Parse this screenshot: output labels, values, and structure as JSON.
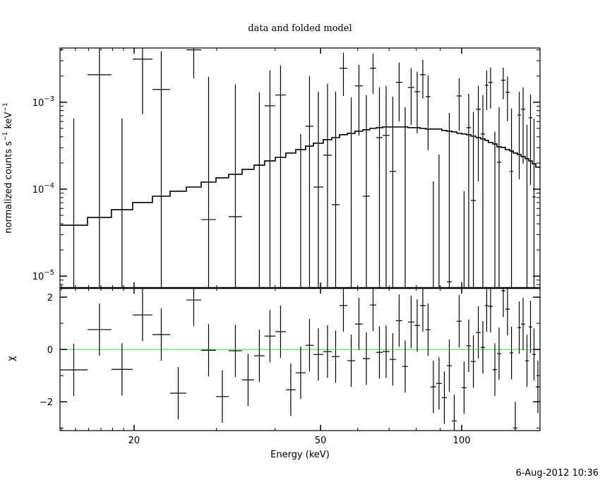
{
  "chart_data": [
    {
      "panel": "spectrum",
      "type": "line",
      "title": "data and folded model",
      "ylabel_parts": [
        "normalized counts s",
        "−1",
        " keV",
        "−1"
      ],
      "xlim": [
        13.9,
        146.9
      ],
      "ylim": [
        7.3e-06,
        0.0042
      ],
      "xscale": "log",
      "yscale": "log",
      "yticks": [
        {
          "value": 1e-05,
          "base": "10",
          "exp": "−5"
        },
        {
          "value": 0.0001,
          "base": "10",
          "exp": "−4"
        },
        {
          "value": 0.001,
          "base": "10",
          "exp": "−3"
        }
      ],
      "bin_edges_keV": [
        13.9,
        15.91,
        17.89,
        19.86,
        21.89,
        23.87,
        25.85,
        27.81,
        29.91,
        31.83,
        34.0,
        36.06,
        37.98,
        40.02,
        42.15,
        44.25,
        46.45,
        48.26,
        50.66,
        52.81,
        54.87,
        57.01,
        59.23,
        61.52,
        63.7,
        65.71,
        67.8,
        70.18,
        72.4,
        74.7,
        76.8,
        79.24,
        81.47,
        83.75,
        85.81,
        88.22,
        90.7,
        92.95,
        95.24,
        97.57,
        99.97,
        102.4,
        104.6,
        107.2,
        109.8,
        112.1,
        114.0,
        116.5,
        118.9,
        121.4,
        123.9,
        126.6,
        128.8,
        131.5,
        133.8,
        136.6,
        139.0,
        141.4,
        143.9,
        146.9
      ],
      "model": [
        3.85e-05,
        4.73e-05,
        5.81e-05,
        7.01e-05,
        8.29e-05,
        9.46e-05,
        0.0001057,
        0.0001205,
        0.0001349,
        0.0001482,
        0.000169,
        0.0001889,
        0.0002114,
        0.0002323,
        0.00026,
        0.0002851,
        0.000313,
        0.000338,
        0.000371,
        0.000392,
        0.000423,
        0.000439,
        0.000464,
        0.000482,
        0.0005,
        0.00051,
        0.000519,
        0.000519,
        0.000519,
        0.000519,
        0.00051,
        0.00051,
        0.0005,
        0.000491,
        0.000491,
        0.000491,
        0.000473,
        0.000464,
        0.000456,
        0.000439,
        0.000431,
        0.000423,
        0.000407,
        0.000392,
        0.000378,
        0.000364,
        0.000344,
        0.000331,
        0.000307,
        0.000302,
        0.000285,
        0.000275,
        0.00026,
        0.00025,
        0.000237,
        0.000224,
        0.000211,
        0.000196,
        0.000179
      ],
      "data": [
        [
          null,
          null,
          0.00065
        ],
        [
          0.00207,
          null,
          0.006
        ],
        [
          null,
          null,
          0.00065
        ],
        [
          0.00313,
          0.000727,
          0.006
        ],
        [
          0.0014,
          null,
          0.00385
        ],
        [
          null,
          null,
          null
        ],
        [
          0.004,
          0.00189,
          0.006
        ],
        [
          4.47e-05,
          null,
          0.00196
        ],
        [
          null,
          null,
          null
        ],
        [
          4.82e-05,
          null,
          0.0016
        ],
        [
          null,
          null,
          null
        ],
        [
          null,
          null,
          0.0013
        ],
        [
          0.00091,
          null,
          0.00232
        ],
        [
          0.00121,
          null,
          0.00265
        ],
        [
          null,
          null,
          null
        ],
        [
          null,
          null,
          0.000431
        ],
        [
          0.000529,
          null,
          0.002
        ],
        [
          0.0001057,
          null,
          0.00132
        ],
        [
          0.000246,
          null,
          0.00163
        ],
        [
          6.62e-05,
          null,
          0.00132
        ],
        [
          0.00246,
          0.00118,
          0.00371
        ],
        [
          null,
          null,
          0.00114
        ],
        [
          0.00154,
          0.000415,
          0.0027
        ],
        [
          8.29e-05,
          null,
          0.00121
        ],
        [
          0.00246,
          0.00125,
          0.00364
        ],
        [
          0.000392,
          null,
          0.00148
        ],
        [
          0.000415,
          null,
          0.00154
        ],
        [
          0.00016,
          null,
          0.00116
        ],
        [
          0.00169,
          0.000603,
          0.00285
        ],
        [
          null,
          null,
          0.000877
        ],
        [
          0.00148,
          0.000549,
          0.00246
        ],
        [
          0.00132,
          0.000439,
          0.00224
        ],
        [
          0.00207,
          0.0011,
          0.00307
        ],
        [
          0.00116,
          0.00028,
          0.00204
        ],
        [
          null,
          null,
          0.000123
        ],
        [
          null,
          null,
          0.00025
        ],
        [
          null,
          null,
          null
        ],
        [
          8.6e-06,
          null,
          0.000755
        ],
        [
          null,
          null,
          null
        ],
        [
          0.00118,
          0.000473,
          0.00189
        ],
        [
          null,
          null,
          9.46e-05
        ],
        [
          0.00051,
          null,
          0.00125
        ],
        [
          7.41e-05,
          null,
          0.000769
        ],
        [
          0.000829,
          0.000123,
          0.00154
        ],
        [
          0.000431,
          null,
          0.00121
        ],
        [
          0.00157,
          0.000814,
          0.00232
        ],
        [
          0.00169,
          0.000845,
          0.0025
        ],
        [
          null,
          null,
          0.000456
        ],
        [
          0.000204,
          null,
          0.000877
        ],
        [
          0.00179,
          0.00108,
          0.0025
        ],
        [
          0.0013,
          0.000603,
          0.00196
        ],
        [
          0.00016,
          null,
          0.000845
        ],
        [
          null,
          null,
          null
        ],
        [
          0.000714,
          0.00013,
          0.00132
        ],
        [
          0.000829,
          0.000196,
          0.00148
        ],
        [
          null,
          null,
          0.000549
        ],
        [
          0.000662,
          0.000112,
          0.00123
        ],
        [
          8.14e-05,
          null,
          0.00065
        ],
        [
          null,
          null,
          null
        ]
      ]
    },
    {
      "panel": "residuals",
      "type": "scatter",
      "ylabel": "χ",
      "xlabel": "Energy (keV)",
      "xlim": [
        13.9,
        146.9
      ],
      "ylim": [
        -3.1,
        2.35
      ],
      "xscale": "log",
      "xticks": [
        {
          "value": 20,
          "label": "20"
        },
        {
          "value": 50,
          "label": "50"
        },
        {
          "value": 100,
          "label": "100"
        }
      ],
      "xminor": [
        14,
        15,
        16,
        17,
        18,
        19,
        30,
        40,
        60,
        70,
        80,
        90
      ],
      "yticks": [
        {
          "value": -2,
          "label": "−2"
        },
        {
          "value": 0,
          "label": "0"
        },
        {
          "value": 2,
          "label": "2"
        }
      ],
      "yminor": [
        -3,
        -1,
        1
      ],
      "zero_line_color": "#00ff00",
      "chi_error": 1,
      "chi": [
        -0.78,
        0.76,
        -0.76,
        1.32,
        0.57,
        -1.67,
        1.89,
        -0.03,
        -1.8,
        -0.05,
        -1.16,
        -0.24,
        0.51,
        0.68,
        -1.54,
        -0.89,
        0.16,
        -0.19,
        -0.08,
        -0.27,
        1.68,
        -0.43,
        0.97,
        -0.35,
        1.7,
        -0.11,
        -0.08,
        -0.38,
        1.1,
        -0.65,
        1.05,
        0.92,
        1.68,
        0.76,
        -1.43,
        -1.3,
        -1.84,
        -0.62,
        -2.73,
        1.08,
        -1.46,
        0.14,
        -0.46,
        0.65,
        0.08,
        1.68,
        1.65,
        -0.77,
        -0.16,
        2.24,
        1.54,
        -0.13,
        -3.0,
        0.84,
        0.97,
        -0.43,
        0.86,
        -0.19,
        -1.43
      ]
    }
  ],
  "timestamp": "6-Aug-2012 10:36",
  "colors": {
    "data": "#000000",
    "model": "#000000",
    "zero_line": "#00ff00"
  }
}
